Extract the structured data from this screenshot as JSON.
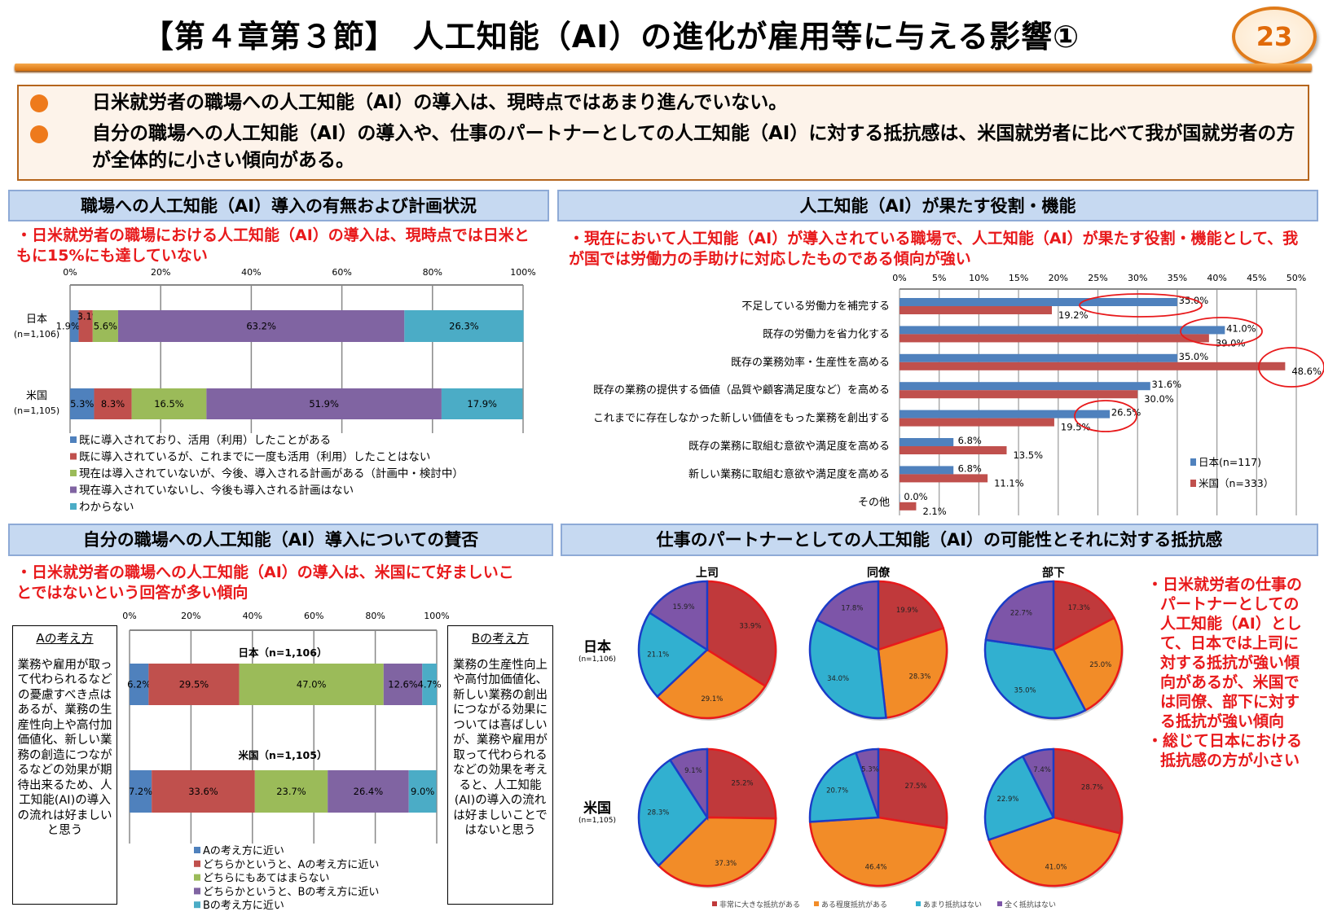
{
  "header": {
    "title": "【第４章第３節】　人工知能（AI）の進化が雇用等に与える影響①",
    "page_number": "23"
  },
  "summary": {
    "items": [
      "日米就労者の職場への人工知能（AI）の導入は、現時点ではあまり進んでいない。",
      "自分の職場への人工知能（AI）の導入や、仕事のパートナーとしての人工知能（AI）に対する抵抗感は、米国就労者に比べて我が国就労者の方が全体的に小さい傾向がある。"
    ]
  },
  "sections": {
    "s1": {
      "title": "職場への人工知能（AI）導入の有無および計画状況",
      "note": "・日米就労者の職場における人工知能（AI）の導入は、現時点では日米ともに15%にも達していない"
    },
    "s2": {
      "title": "人工知能（AI）が果たす役割・機能",
      "note": "・現在において人工知能（AI）が導入されている職場で、人工知能（AI）が果たす役割・機能として、我が国では労働力の手助けに対応したものである傾向が強い"
    },
    "s3": {
      "title": "自分の職場への人工知能（AI）導入についての賛否",
      "note": "・日米就労者の職場への人工知能（AI）の導入は、米国にて好ましいことではないという回答が多い傾向",
      "box_a": {
        "heading": "Aの考え方",
        "text": "業務や雇用が取って代わられるなどの憂慮すべき点はあるが、業務の生産性向上や高付加価値化、新しい業務の創造につながるなどの効果が期待出来るため、人工知能(AI)の導入の流れは好ましいと思う"
      },
      "box_b": {
        "heading": "Bの考え方",
        "text": "業務の生産性向上や高付加価値化、新しい業務の創出につながる効果については喜ばしいが、業務や雇用が取って代わられるなどの効果を考えると、人工知能(AI)の導入の流れは好ましいことではないと思う"
      }
    },
    "s4": {
      "title": "仕事のパートナーとしての人工知能（AI）の可能性とそれに対する抵抗感",
      "note1": "・日米就労者の仕事のパートナーとしての人工知能（AI）として、日本では上司に対する抵抗が強い傾向があるが、米国では同僚、部下に対する抵抗が強い傾向",
      "note2": "・総じて日本における抵抗感の方が小さい"
    }
  },
  "chart_data": [
    {
      "type": "bar",
      "orientation": "horizontal",
      "stacked": "percent",
      "categories": [
        "日本",
        "米国"
      ],
      "category_sub": [
        "(n=1,106)",
        "(n=1,105)"
      ],
      "xticks": [
        "0%",
        "20%",
        "40%",
        "60%",
        "80%",
        "100%"
      ],
      "xlim": [
        0,
        100
      ],
      "grid": true,
      "legend": "bottom",
      "series": [
        {
          "name": "既に導入されており、活用（利用）したことがある",
          "values": [
            1.9,
            5.3
          ],
          "color": "#4f81bd"
        },
        {
          "name": "既に導入されているが、これまでに一度も活用（利用）したことはない",
          "values": [
            3.1,
            8.3
          ],
          "color": "#c0504d"
        },
        {
          "name": "現在は導入されていないが、今後、導入される計画がある（計画中・検討中）",
          "values": [
            5.6,
            16.5
          ],
          "color": "#9bbb59"
        },
        {
          "name": "現在導入されていないし、今後も導入される計画はない",
          "values": [
            63.2,
            51.9
          ],
          "color": "#8064a2"
        },
        {
          "name": "わからない",
          "values": [
            26.3,
            17.9
          ],
          "color": "#4bacc6"
        }
      ]
    },
    {
      "type": "bar",
      "orientation": "horizontal",
      "categories": [
        "不足している労働力を補完する",
        "既存の労働力を省力化する",
        "既存の業務効率・生産性を高める",
        "既存の業務の提供する価値（品質や顧客満足度など）を高める",
        "これまでに存在しなかった新しい価値をもった業務を創出する",
        "既存の業務に取組む意欲や満足度を高める",
        "新しい業務に取組む意欲や満足度を高める",
        "その他"
      ],
      "xticks": [
        "0%",
        "5%",
        "10%",
        "15%",
        "20%",
        "25%",
        "30%",
        "35%",
        "40%",
        "45%",
        "50%"
      ],
      "xlim": [
        0,
        50
      ],
      "grid": true,
      "legend": "right",
      "series": [
        {
          "name": "日本(n=117)",
          "values": [
            35.0,
            41.0,
            35.0,
            31.6,
            26.5,
            6.8,
            6.8,
            0.0
          ],
          "color": "#4f81bd"
        },
        {
          "name": "米国（n=333）",
          "values": [
            19.2,
            39.0,
            48.6,
            30.0,
            19.5,
            13.5,
            11.1,
            2.1
          ],
          "color": "#c0504d"
        }
      ],
      "annotations": "red ellipses highlight 35.0% (row 1), 41.0%/39.0% (row 2), 48.6% (row 3), 26.5% (row 5)"
    },
    {
      "type": "bar",
      "orientation": "horizontal",
      "stacked": "percent",
      "categories": [
        "日本（n=1,106）",
        "米国（n=1,105）"
      ],
      "xticks": [
        "0%",
        "20%",
        "40%",
        "60%",
        "80%",
        "100%"
      ],
      "xlim": [
        0,
        100
      ],
      "grid": true,
      "legend": "bottom",
      "series": [
        {
          "name": "Aの考え方に近い",
          "values": [
            6.2,
            7.2
          ],
          "color": "#4f81bd"
        },
        {
          "name": "どちらかというと、Aの考え方に近い",
          "values": [
            29.5,
            33.6
          ],
          "color": "#c0504d"
        },
        {
          "name": "どちらにもあてはまらない",
          "values": [
            47.0,
            23.7
          ],
          "color": "#9bbb59"
        },
        {
          "name": "どちらかというと、Bの考え方に近い",
          "values": [
            12.6,
            26.4
          ],
          "color": "#8064a2"
        },
        {
          "name": "Bの考え方に近い",
          "values": [
            4.7,
            9.0
          ],
          "color": "#4bacc6"
        }
      ]
    },
    {
      "type": "pie",
      "columns": [
        "上司",
        "同僚",
        "部下"
      ],
      "rows": [
        {
          "label": "日本",
          "sub": "(n=1,106)"
        },
        {
          "label": "米国",
          "sub": "(n=1,105)"
        }
      ],
      "slice_names": [
        "非常に大きな抵抗がある",
        "ある程度抵抗がある",
        "あまり抵抗はない",
        "全く抵抗はない"
      ],
      "colors": [
        "#c0393b",
        "#f28c28",
        "#31b0d0",
        "#7d55a8"
      ],
      "values": [
        [
          [
            33.9,
            29.1,
            21.1,
            15.9
          ],
          [
            19.9,
            28.3,
            34.0,
            17.8
          ],
          [
            17.3,
            25.0,
            35.0,
            22.7
          ]
        ],
        [
          [
            25.2,
            37.3,
            28.3,
            9.1
          ],
          [
            27.5,
            46.4,
            20.7,
            5.3
          ],
          [
            28.7,
            41.0,
            22.9,
            7.4
          ]
        ]
      ],
      "legend": "bottom"
    }
  ]
}
